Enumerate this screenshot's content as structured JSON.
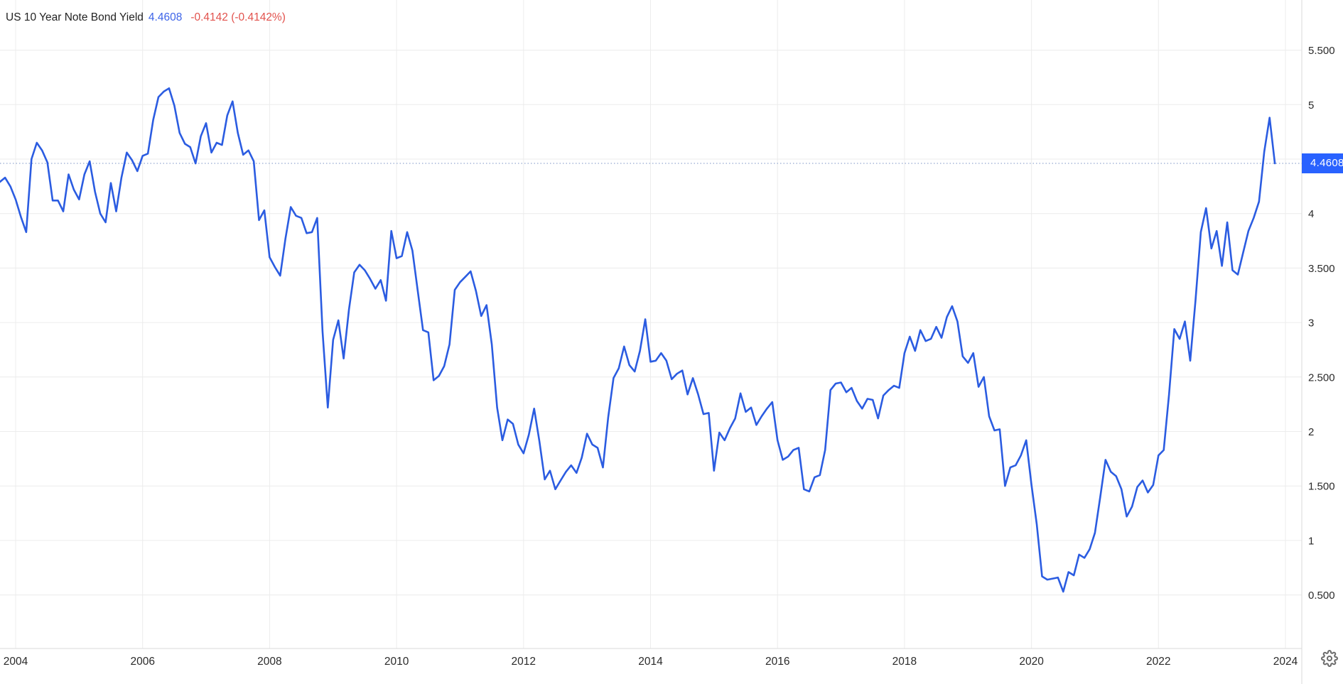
{
  "header": {
    "title": "US 10 Year Note Bond Yield",
    "value": "4.4608",
    "change": "-0.4142 (-0.4142%)"
  },
  "price_badge": {
    "label": "4.4608"
  },
  "icons": {
    "settings": "gear-icon"
  },
  "colors": {
    "series_line": "#2B5CE1",
    "badge_background": "#2962FF",
    "badge_text": "#FFFFFF",
    "header_value": "#3D64E8",
    "header_change": "#E2524D",
    "grid": "#ECECEC",
    "axis_border": "#DADADA",
    "axis_text": "#2A2A2A",
    "current_price_dotted_line": "#94A8D0",
    "background": "#FFFFFF",
    "settings_icon": "#6B6B6B"
  },
  "chart_data": {
    "type": "line",
    "title": "US 10 Year Note Bond Yield",
    "xlabel": "",
    "ylabel": "",
    "legend": "none",
    "grid": "both",
    "frequency": "monthly",
    "start": "2003-10",
    "end": "2023-11",
    "last_value": 4.4608,
    "change": -0.4142,
    "change_pct": -0.4142,
    "x_axis_visible_range": [
      2003.77,
      2024.23
    ],
    "y_axis_visible_range": [
      0.01,
      5.96
    ],
    "x_ticks": [
      {
        "label": "2004",
        "year": 2004
      },
      {
        "label": "2006",
        "year": 2006
      },
      {
        "label": "2008",
        "year": 2008
      },
      {
        "label": "2010",
        "year": 2010
      },
      {
        "label": "2012",
        "year": 2012
      },
      {
        "label": "2014",
        "year": 2014
      },
      {
        "label": "2016",
        "year": 2016
      },
      {
        "label": "2018",
        "year": 2018
      },
      {
        "label": "2020",
        "year": 2020
      },
      {
        "label": "2022",
        "year": 2022
      },
      {
        "label": "2024",
        "year": 2024
      }
    ],
    "y_ticks": [
      {
        "label": "5.500",
        "value": 5.5
      },
      {
        "label": "5",
        "value": 5.0
      },
      {
        "label": "4.500",
        "value": 4.5
      },
      {
        "label": "4",
        "value": 4.0
      },
      {
        "label": "3.500",
        "value": 3.5
      },
      {
        "label": "3",
        "value": 3.0
      },
      {
        "label": "2.500",
        "value": 2.5
      },
      {
        "label": "2",
        "value": 2.0
      },
      {
        "label": "1.500",
        "value": 1.5
      },
      {
        "label": "1",
        "value": 1.0
      },
      {
        "label": "0.500",
        "value": 0.5
      }
    ],
    "series": [
      {
        "name": "US 10 Year Note Bond Yield",
        "color": "#2B5CE1",
        "values": [
          4.29,
          4.33,
          4.25,
          4.13,
          3.97,
          3.83,
          4.5,
          4.65,
          4.58,
          4.47,
          4.12,
          4.12,
          4.02,
          4.36,
          4.22,
          4.13,
          4.36,
          4.48,
          4.2,
          4.0,
          3.92,
          4.28,
          4.02,
          4.33,
          4.56,
          4.49,
          4.39,
          4.53,
          4.55,
          4.86,
          5.07,
          5.12,
          5.15,
          4.99,
          4.74,
          4.64,
          4.61,
          4.46,
          4.71,
          4.83,
          4.56,
          4.65,
          4.63,
          4.9,
          5.03,
          4.74,
          4.54,
          4.58,
          4.48,
          3.94,
          4.03,
          3.6,
          3.51,
          3.43,
          3.77,
          4.06,
          3.98,
          3.96,
          3.82,
          3.83,
          3.96,
          2.92,
          2.22,
          2.84,
          3.02,
          2.67,
          3.12,
          3.46,
          3.53,
          3.48,
          3.4,
          3.31,
          3.39,
          3.2,
          3.84,
          3.59,
          3.61,
          3.83,
          3.66,
          3.29,
          2.93,
          2.91,
          2.47,
          2.51,
          2.6,
          2.8,
          3.3,
          3.37,
          3.42,
          3.47,
          3.29,
          3.06,
          3.16,
          2.8,
          2.22,
          1.92,
          2.11,
          2.07,
          1.88,
          1.8,
          1.97,
          2.21,
          1.91,
          1.56,
          1.64,
          1.47,
          1.55,
          1.63,
          1.69,
          1.62,
          1.76,
          1.98,
          1.88,
          1.85,
          1.67,
          2.13,
          2.49,
          2.58,
          2.78,
          2.61,
          2.55,
          2.74,
          3.03,
          2.64,
          2.65,
          2.72,
          2.65,
          2.48,
          2.53,
          2.56,
          2.34,
          2.49,
          2.34,
          2.16,
          2.17,
          1.64,
          1.99,
          1.92,
          2.03,
          2.12,
          2.35,
          2.18,
          2.22,
          2.06,
          2.14,
          2.21,
          2.27,
          1.92,
          1.74,
          1.77,
          1.83,
          1.85,
          1.47,
          1.45,
          1.58,
          1.6,
          1.83,
          2.38,
          2.44,
          2.45,
          2.36,
          2.4,
          2.28,
          2.21,
          2.3,
          2.29,
          2.12,
          2.33,
          2.38,
          2.42,
          2.4,
          2.72,
          2.87,
          2.74,
          2.93,
          2.83,
          2.85,
          2.96,
          2.86,
          3.05,
          3.15,
          3.01,
          2.69,
          2.63,
          2.72,
          2.41,
          2.5,
          2.14,
          2.01,
          2.02,
          1.5,
          1.67,
          1.69,
          1.78,
          1.92,
          1.51,
          1.15,
          0.67,
          0.64,
          0.65,
          0.66,
          0.53,
          0.71,
          0.68,
          0.87,
          0.84,
          0.92,
          1.07,
          1.4,
          1.74,
          1.63,
          1.59,
          1.47,
          1.22,
          1.31,
          1.49,
          1.55,
          1.44,
          1.51,
          1.78,
          1.83,
          2.34,
          2.94,
          2.85,
          3.01,
          2.65,
          3.2,
          3.83,
          4.05,
          3.68,
          3.84,
          3.52,
          3.92,
          3.48,
          3.44,
          3.64,
          3.84,
          3.96,
          4.11,
          4.57,
          4.88,
          4.4608
        ]
      }
    ]
  }
}
